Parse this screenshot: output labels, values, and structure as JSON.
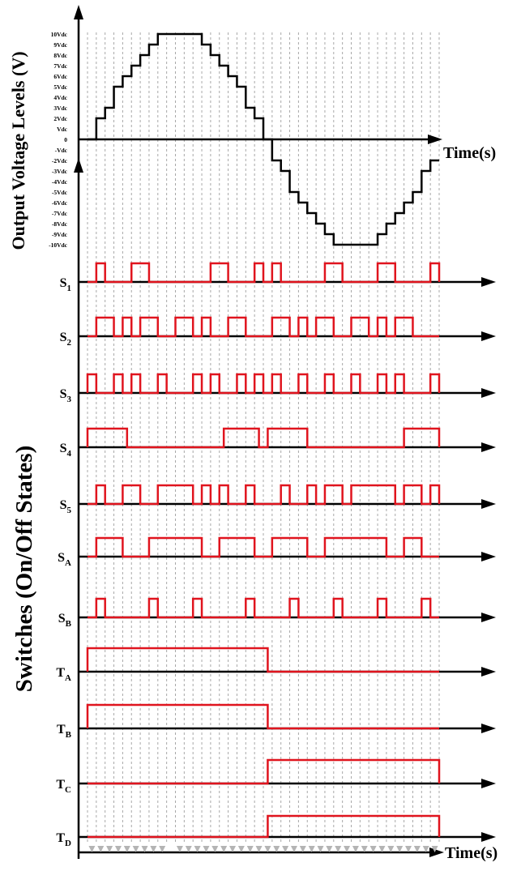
{
  "y_axis_title_top": "Output Voltage Levels (V)",
  "y_axis_title_bottom": "Switches (On/Off States)",
  "time_label_top": "Time(s)",
  "time_label_bottom": "Time(s)",
  "voltage_levels": [
    "10Vdc",
    "9Vdc",
    "8Vdc",
    "7Vdc",
    "6Vdc",
    "5Vdc",
    "4Vdc",
    "3Vdc",
    "2Vdc",
    "Vdc",
    "0",
    "-Vdc",
    "-2Vdc",
    "-3Vdc",
    "-4Vdc",
    "-5Vdc",
    "-6Vdc",
    "-7Vdc",
    "-8Vdc",
    "-9Vdc",
    "-10Vdc"
  ],
  "colors": {
    "waveform": "#000000",
    "switch": "#e0141e",
    "grid": "#a8a8a8",
    "arrow": "#b4b4b4"
  },
  "switches": [
    {
      "name": "S",
      "sub": "1"
    },
    {
      "name": "S",
      "sub": "2"
    },
    {
      "name": "S",
      "sub": "3"
    },
    {
      "name": "S",
      "sub": "4"
    },
    {
      "name": "S",
      "sub": "5"
    },
    {
      "name": "S",
      "sub": "A"
    },
    {
      "name": "S",
      "sub": "B"
    },
    {
      "name": "T",
      "sub": "A"
    },
    {
      "name": "T",
      "sub": "B"
    },
    {
      "name": "T",
      "sub": "C"
    },
    {
      "name": "T",
      "sub": "D"
    }
  ]
}
